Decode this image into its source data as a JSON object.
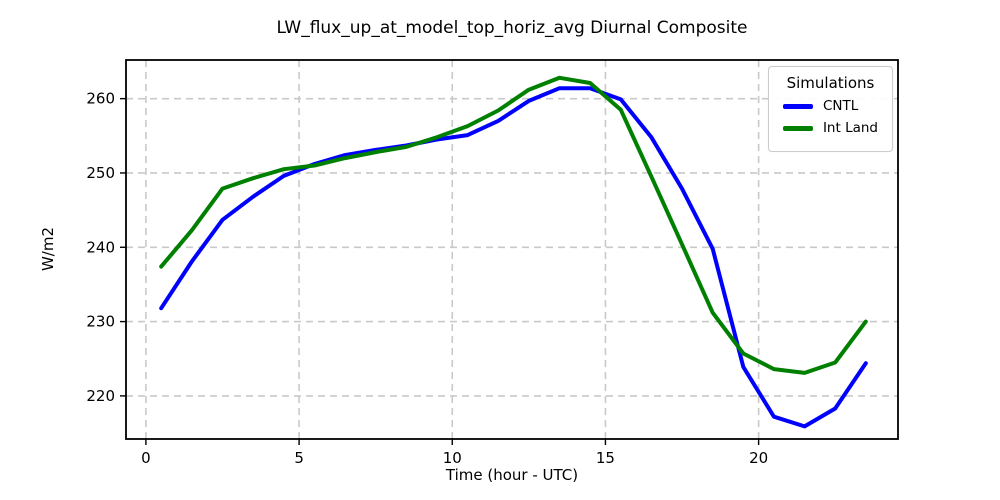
{
  "chart_data": {
    "type": "line",
    "title": "LW_flux_up_at_model_top_horiz_avg Diurnal Composite",
    "xlabel": "Time (hour - UTC)",
    "ylabel": "W/m2",
    "xlim": [
      -0.65,
      24.55
    ],
    "ylim": [
      214.2,
      265.2
    ],
    "xticks": [
      0,
      5,
      10,
      15,
      20
    ],
    "yticks": [
      220,
      230,
      240,
      250,
      260
    ],
    "grid": true,
    "grid_color": "#c9c9c9",
    "legend": {
      "title": "Simulations",
      "position": "upper right"
    },
    "x": [
      0.5,
      1.5,
      2.5,
      3.5,
      4.5,
      5.5,
      6.5,
      7.5,
      8.5,
      9.5,
      10.5,
      11.5,
      12.5,
      13.5,
      14.5,
      15.5,
      16.5,
      17.5,
      18.5,
      19.5,
      20.5,
      21.5,
      22.5,
      23.5
    ],
    "series": [
      {
        "name": "CNTL",
        "color": "#0000ff",
        "values": [
          231.8,
          238.1,
          243.7,
          246.8,
          249.6,
          251.2,
          252.4,
          253.1,
          253.7,
          254.5,
          255.1,
          257.0,
          259.7,
          261.4,
          261.4,
          259.9,
          254.8,
          247.9,
          239.8,
          223.9,
          217.2,
          215.9,
          218.3,
          224.4
        ]
      },
      {
        "name": "Int Land",
        "color": "#008000",
        "values": [
          237.4,
          242.3,
          247.9,
          249.3,
          250.5,
          251.0,
          252.0,
          252.8,
          253.5,
          254.8,
          256.3,
          258.4,
          261.2,
          262.8,
          262.1,
          258.5,
          249.5,
          240.4,
          231.2,
          225.7,
          223.6,
          223.1,
          224.5,
          230.0
        ]
      }
    ]
  }
}
